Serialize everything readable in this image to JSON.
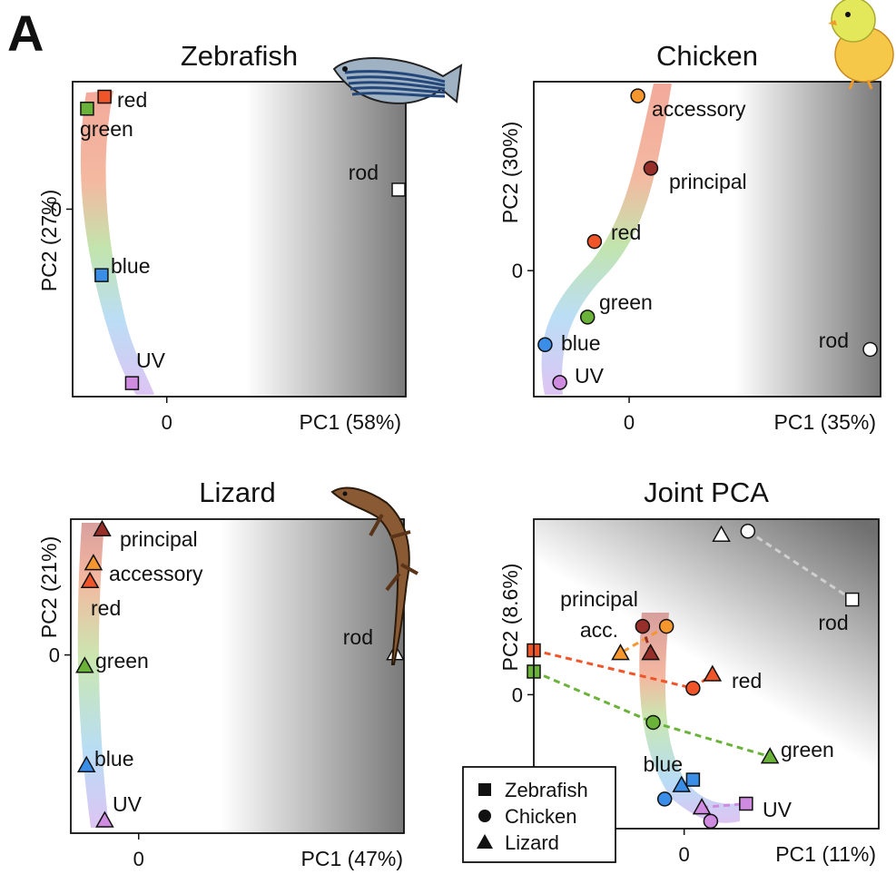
{
  "figure_label": "A",
  "legend": {
    "items": [
      {
        "label": "Zebrafish",
        "marker": "square"
      },
      {
        "label": "Chicken",
        "marker": "circle"
      },
      {
        "label": "Lizard",
        "marker": "triangle"
      }
    ]
  },
  "colors": {
    "red": "#f0552a",
    "green": "#6ab23a",
    "blue": "#3a8ee8",
    "uv": "#cf8be0",
    "principal": "#962f2a",
    "accessory": "#f5962f",
    "rod": "#ffffff"
  },
  "icons": [
    "zebrafish-icon",
    "chicken-icon",
    "lizard-icon"
  ],
  "chart_data": [
    {
      "type": "scatter",
      "title": "Zebrafish",
      "xlabel": "PC1 (58%)",
      "ylabel": "PC2 (27%)",
      "marker": "square",
      "x_ticks": [
        0
      ],
      "y_ticks": [
        0
      ],
      "xlim": [
        -0.65,
        1.65
      ],
      "ylim": [
        -1.25,
        0.85
      ],
      "points": [
        {
          "label": "red",
          "x": -0.43,
          "y": 0.75,
          "color": "red"
        },
        {
          "label": "green",
          "x": -0.55,
          "y": 0.67,
          "color": "green"
        },
        {
          "label": "rod",
          "x": 1.6,
          "y": 0.13,
          "color": "rod"
        },
        {
          "label": "blue",
          "x": -0.45,
          "y": -0.44,
          "color": "blue"
        },
        {
          "label": "UV",
          "x": -0.24,
          "y": -1.16,
          "color": "uv"
        }
      ]
    },
    {
      "type": "scatter",
      "title": "Chicken",
      "xlabel": "PC1 (35%)",
      "ylabel": "PC2 (30%)",
      "marker": "circle",
      "x_ticks": [
        0
      ],
      "y_ticks": [
        0
      ],
      "xlim": [
        -1.1,
        2.9
      ],
      "ylim": [
        -1.6,
        2.4
      ],
      "points": [
        {
          "label": "accessory",
          "x": 0.1,
          "y": 2.22,
          "color": "accessory"
        },
        {
          "label": "principal",
          "x": 0.25,
          "y": 1.3,
          "color": "principal"
        },
        {
          "label": "red",
          "x": -0.4,
          "y": 0.37,
          "color": "red"
        },
        {
          "label": "green",
          "x": -0.48,
          "y": -0.59,
          "color": "green"
        },
        {
          "label": "blue",
          "x": -0.97,
          "y": -0.94,
          "color": "blue"
        },
        {
          "label": "UV",
          "x": -0.8,
          "y": -1.42,
          "color": "uv"
        },
        {
          "label": "rod",
          "x": 2.78,
          "y": -1.0,
          "color": "rod"
        }
      ]
    },
    {
      "type": "scatter",
      "title": "Lizard",
      "xlabel": "PC1 (47%)",
      "ylabel": "PC2 (21%)",
      "marker": "triangle",
      "x_ticks": [
        0
      ],
      "y_ticks": [
        0
      ],
      "xlim": [
        -0.78,
        3.05
      ],
      "ylim": [
        -2.1,
        1.6
      ],
      "points": [
        {
          "label": "principal",
          "x": -0.42,
          "y": 1.48,
          "color": "principal"
        },
        {
          "label": "accessory",
          "x": -0.52,
          "y": 1.08,
          "color": "accessory"
        },
        {
          "label": "red",
          "x": -0.56,
          "y": 0.87,
          "color": "red"
        },
        {
          "label": "green",
          "x": -0.62,
          "y": -0.13,
          "color": "green"
        },
        {
          "label": "blue",
          "x": -0.6,
          "y": -1.3,
          "color": "blue"
        },
        {
          "label": "UV",
          "x": -0.39,
          "y": -1.95,
          "color": "uv"
        },
        {
          "label": "rod",
          "x": 2.95,
          "y": 0.02,
          "color": "rod"
        }
      ]
    },
    {
      "type": "scatter",
      "title": "Joint PCA",
      "xlabel": "PC1 (11%)",
      "ylabel": "PC2 (8.6%)",
      "x_ticks": [
        0
      ],
      "y_ticks": [
        0
      ],
      "xlim": [
        -1.7,
        2.2
      ],
      "ylim": [
        -1.45,
        1.9
      ],
      "point_labels": [
        "principal",
        "acc.",
        "rod",
        "red",
        "green",
        "blue",
        "UV"
      ],
      "points": [
        {
          "species": "Lizard",
          "cone": "rod",
          "x": 0.42,
          "y": 1.73,
          "color": "rod"
        },
        {
          "species": "Chicken",
          "cone": "rod",
          "x": 0.72,
          "y": 1.77,
          "color": "rod"
        },
        {
          "species": "Zebrafish",
          "cone": "rod",
          "x": 1.9,
          "y": 1.03,
          "color": "rod"
        },
        {
          "species": "Chicken",
          "cone": "principal",
          "x": -0.47,
          "y": 0.74,
          "color": "principal"
        },
        {
          "species": "Chicken",
          "cone": "accessory",
          "x": -0.2,
          "y": 0.74,
          "color": "accessory"
        },
        {
          "species": "Lizard",
          "cone": "accessory",
          "x": -0.72,
          "y": 0.45,
          "color": "accessory"
        },
        {
          "species": "Lizard",
          "cone": "principal",
          "x": -0.38,
          "y": 0.45,
          "color": "principal"
        },
        {
          "species": "Zebrafish",
          "cone": "red",
          "x": -1.7,
          "y": 0.48,
          "color": "red"
        },
        {
          "species": "Chicken",
          "cone": "red",
          "x": 0.1,
          "y": 0.07,
          "color": "red"
        },
        {
          "species": "Lizard",
          "cone": "red",
          "x": 0.32,
          "y": 0.22,
          "color": "red"
        },
        {
          "species": "Zebrafish",
          "cone": "green",
          "x": -1.7,
          "y": 0.25,
          "color": "green"
        },
        {
          "species": "Chicken",
          "cone": "green",
          "x": -0.35,
          "y": -0.3,
          "color": "green"
        },
        {
          "species": "Lizard",
          "cone": "green",
          "x": 0.97,
          "y": -0.67,
          "color": "green"
        },
        {
          "species": "Zebrafish",
          "cone": "blue",
          "x": 0.1,
          "y": -0.92,
          "color": "blue"
        },
        {
          "species": "Lizard",
          "cone": "blue",
          "x": -0.03,
          "y": -0.98,
          "color": "blue"
        },
        {
          "species": "Chicken",
          "cone": "blue",
          "x": -0.22,
          "y": -1.13,
          "color": "blue"
        },
        {
          "species": "Zebrafish",
          "cone": "UV",
          "x": 0.7,
          "y": -1.18,
          "color": "uv"
        },
        {
          "species": "Lizard",
          "cone": "UV",
          "x": 0.2,
          "y": -1.22,
          "color": "uv"
        },
        {
          "species": "Chicken",
          "cone": "UV",
          "x": 0.3,
          "y": -1.37,
          "color": "uv"
        }
      ]
    }
  ]
}
